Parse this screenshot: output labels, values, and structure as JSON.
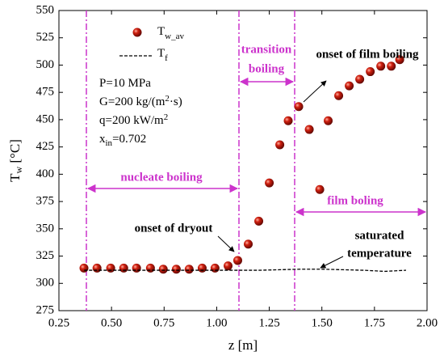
{
  "chart_data": {
    "type": "scatter",
    "x_label": {
      "main": "z [m]"
    },
    "y_label": {
      "main": "T",
      "sub": "w",
      "rest": " [°C]"
    },
    "xlim": [
      0.25,
      2.0
    ],
    "ylim": [
      275,
      550
    ],
    "xticks": [
      0.25,
      {
        "value": 0.5,
        "label": "0.50"
      },
      0.75,
      {
        "value": 1.0,
        "label": "1.00"
      },
      1.25,
      {
        "value": 1.5,
        "label": "1.50"
      },
      1.75,
      {
        "value": 2.0,
        "label": "2.00"
      }
    ],
    "yticks": [
      275,
      300,
      325,
      350,
      375,
      400,
      425,
      450,
      475,
      500,
      525,
      550
    ],
    "series": [
      {
        "name": "T",
        "subscript": "w_av",
        "type": "scatter",
        "color": "#c0120c",
        "x": [
          0.369,
          0.431,
          0.496,
          0.558,
          0.619,
          0.685,
          0.746,
          0.808,
          0.869,
          0.931,
          0.992,
          1.054,
          1.1,
          1.15,
          1.2,
          1.25,
          1.3,
          1.34,
          1.39,
          1.44,
          1.49,
          1.53,
          1.58,
          1.63,
          1.68,
          1.73,
          1.78,
          1.83,
          1.87
        ],
        "values": [
          314,
          314,
          314,
          314,
          314,
          314,
          313,
          313,
          313,
          314,
          314,
          316,
          321,
          336,
          357,
          392,
          427,
          449,
          462,
          441,
          386,
          449,
          472,
          481,
          487,
          494,
          499,
          499,
          505
        ]
      },
      {
        "name": "T",
        "subscript": "f",
        "type": "line",
        "color": "#000000",
        "x": [
          0.37,
          0.5,
          0.7,
          0.9,
          1.1,
          1.2,
          1.3,
          1.4,
          1.5,
          1.6,
          1.7,
          1.8,
          1.9
        ],
        "values": [
          312,
          312,
          312,
          312,
          312,
          312,
          312.5,
          313,
          313,
          312.5,
          312,
          311,
          312
        ]
      }
    ],
    "parameters": [
      {
        "parts": [
          "P=10 MPa"
        ]
      },
      {
        "parts": [
          "G=200 kg/(m",
          "2",
          "·s)"
        ]
      },
      {
        "parts": [
          "q=200 kW/m",
          "2"
        ]
      },
      {
        "parts": [
          "x",
          "in",
          "=0.702"
        ]
      }
    ],
    "annotations": {
      "nucleate": "nucleate boiling",
      "transition": [
        "transition",
        "boiling"
      ],
      "film": "film boling",
      "onset_film": "onset of film boiling",
      "onset_dryout": "onset of dryout",
      "saturated": [
        "saturated",
        "temperature"
      ]
    }
  }
}
